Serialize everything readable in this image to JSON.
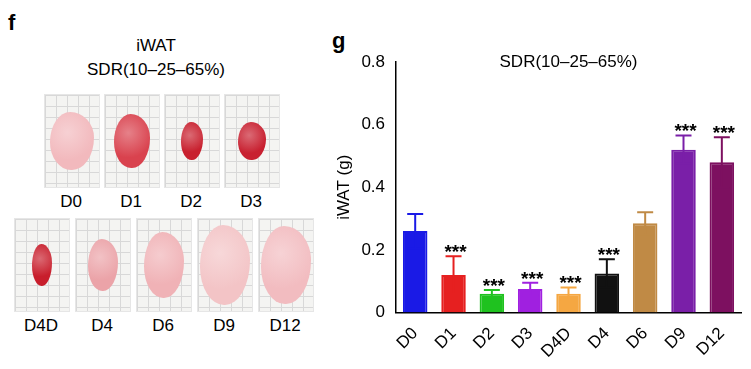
{
  "panel_f": {
    "panel_label": "f",
    "title": "iWAT",
    "subtitle": "SDR(10–25–65%)",
    "rows": [
      [
        "D0",
        "D1",
        "D2",
        "D3"
      ],
      [
        "D4D",
        "D4",
        "D6",
        "D9",
        "D12"
      ]
    ]
  },
  "chart_data": {
    "type": "bar",
    "panel_label": "g",
    "title": "SDR(10–25–65%)",
    "y_label": "iWAT (g)",
    "categories": [
      "D0",
      "D1",
      "D2",
      "D3",
      "D4D",
      "D4",
      "D6",
      "D9",
      "D12"
    ],
    "values": [
      0.26,
      0.12,
      0.06,
      0.075,
      0.06,
      0.125,
      0.285,
      0.52,
      0.48
    ],
    "errors": [
      0.055,
      0.06,
      0.012,
      0.02,
      0.02,
      0.045,
      0.035,
      0.045,
      0.08
    ],
    "colors": [
      "#1a1ae6",
      "#e62020",
      "#1fc21f",
      "#a020e0",
      "#f5a742",
      "#111111",
      "#c08a45",
      "#7a1fa8",
      "#7d1060"
    ],
    "annotations": [
      null,
      "***",
      "***",
      "***",
      "***",
      "***",
      null,
      "***",
      "***"
    ],
    "ylim": [
      0,
      0.8
    ],
    "yticks": [
      0,
      0.2,
      0.4,
      0.6,
      0.8
    ],
    "grid": false
  }
}
